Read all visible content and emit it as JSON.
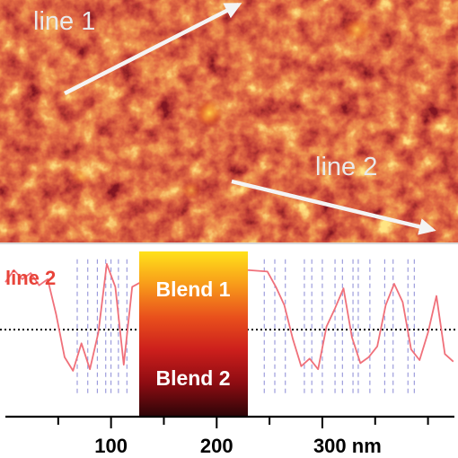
{
  "image": {
    "arrow_1_label": "line 1",
    "arrow_2_label": "line 2",
    "colormap": [
      "#3b0204",
      "#8a0d0a",
      "#c0240f",
      "#e05516",
      "#ffc53a"
    ]
  },
  "colorbar": {
    "top_label": "Blend 1",
    "bottom_label": "Blend 2",
    "gradient": [
      "#ffe21a",
      "#f89b1a",
      "#e9501c",
      "#cc1f1c",
      "#8e0c12",
      "#2e0508"
    ]
  },
  "chart_data": {
    "type": "line",
    "series": [
      {
        "name": "line 2",
        "color": "#f0707a",
        "x": [
          0,
          8,
          16,
          24,
          32,
          40,
          48,
          56,
          64,
          72,
          80,
          88,
          96,
          104,
          112,
          120,
          128,
          136,
          144,
          152,
          248,
          256,
          264,
          272,
          280,
          288,
          296,
          304,
          312,
          320,
          328,
          336,
          344,
          352,
          360,
          368,
          376,
          384,
          392,
          400,
          408,
          416,
          424
        ],
        "y": [
          0.62,
          0.78,
          0.66,
          0.74,
          0.58,
          0.66,
          0.2,
          -0.36,
          -0.54,
          -0.18,
          -0.52,
          -0.04,
          0.86,
          0.56,
          -0.46,
          0.56,
          0.62,
          0.46,
          0.34,
          0.86,
          0.76,
          0.56,
          0.32,
          -0.12,
          -0.48,
          -0.38,
          -0.52,
          0.04,
          0.28,
          0.54,
          -0.1,
          -0.44,
          -0.36,
          -0.22,
          0.32,
          0.6,
          0.36,
          -0.26,
          -0.4,
          -0.04,
          0.44,
          -0.32,
          -0.42
        ]
      }
    ],
    "xlim": [
      0,
      425
    ],
    "ylim": [
      -1,
      1
    ],
    "xticks_major": [
      100,
      200,
      300
    ],
    "xticks_minor": [
      50,
      150,
      250,
      350,
      400
    ],
    "xtick_labels": [
      "100",
      "200",
      "300 nm"
    ],
    "reference_line": 0,
    "marker_lines_x": [
      68,
      78,
      87,
      95,
      100,
      107,
      115,
      245,
      255,
      265,
      283,
      290,
      300,
      312,
      319,
      329,
      334,
      345,
      359,
      367,
      381,
      387
    ],
    "grid": false
  }
}
